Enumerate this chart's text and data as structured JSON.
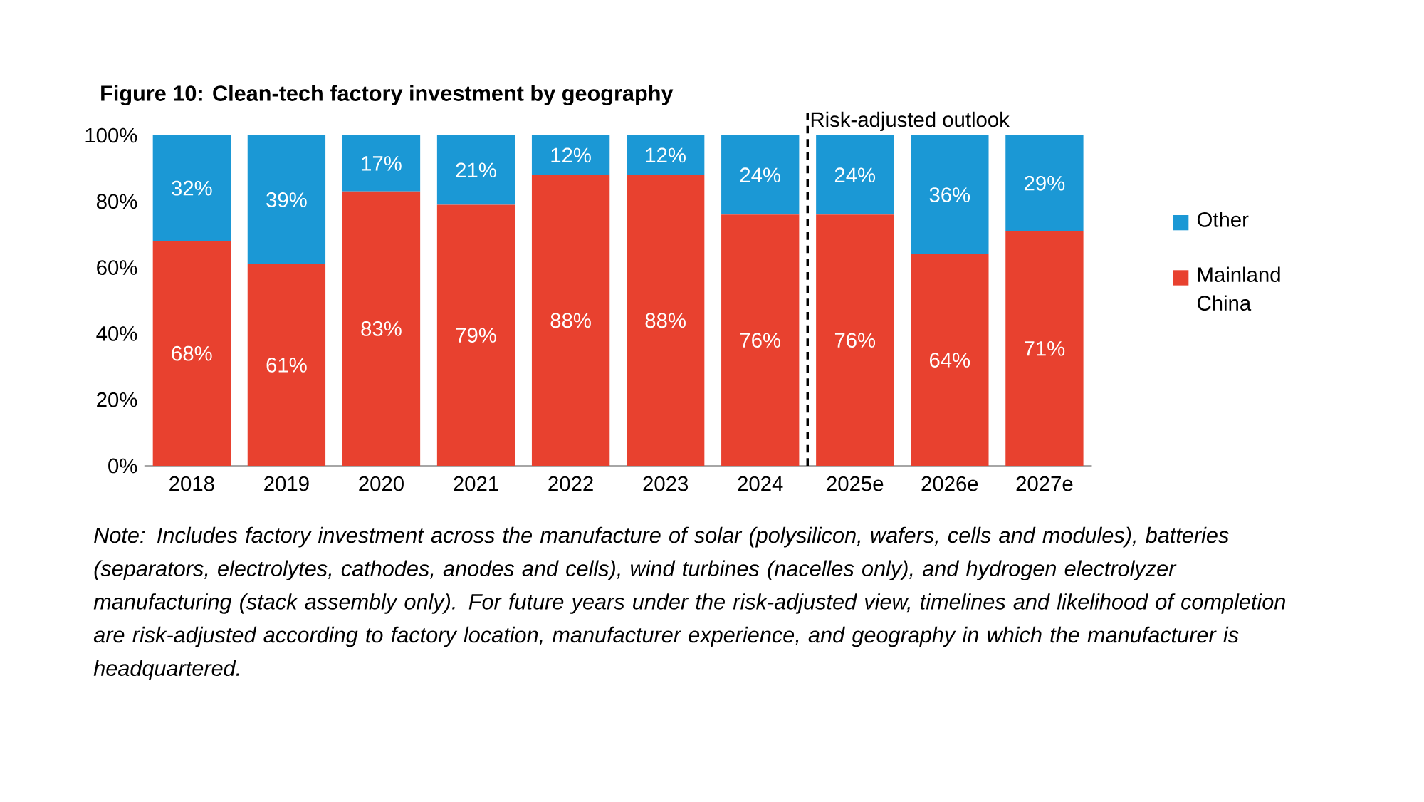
{
  "chart_data": {
    "type": "bar",
    "stacked": true,
    "title": "Figure 10: Clean-tech factory investment by geography",
    "categories": [
      "2018",
      "2019",
      "2020",
      "2021",
      "2022",
      "2023",
      "2024",
      "2025e",
      "2026e",
      "2027e"
    ],
    "series": [
      {
        "name": "Mainland China",
        "color": "#e8412f",
        "values": [
          68,
          61,
          83,
          79,
          88,
          88,
          76,
          76,
          64,
          71
        ],
        "value_labels": [
          "68%",
          "61%",
          "83%",
          "79%",
          "88%",
          "88%",
          "76%",
          "76%",
          "64%",
          "71%"
        ]
      },
      {
        "name": "Other",
        "color": "#1b98d5",
        "values": [
          32,
          39,
          17,
          21,
          12,
          12,
          24,
          24,
          36,
          29
        ],
        "value_labels": [
          "32%",
          "39%",
          "17%",
          "21%",
          "12%",
          "12%",
          "24%",
          "24%",
          "36%",
          "29%"
        ]
      }
    ],
    "ylim": [
      0,
      100
    ],
    "yticks": [
      {
        "value": 0,
        "label": "0%"
      },
      {
        "value": 20,
        "label": "20%"
      },
      {
        "value": 40,
        "label": "40%"
      },
      {
        "value": 60,
        "label": "60%"
      },
      {
        "value": 80,
        "label": "80%"
      },
      {
        "value": 100,
        "label": "100%"
      }
    ],
    "legend": "right",
    "grid": false,
    "annotations": [
      "Risk-adjusted outlook",
      "Note: Includes factory investment across the manufacture of solar (polysilicon, wafers, cells and modules), batteries (separators, electrolytes, cathodes, anodes and cells), wind turbines (nacelles only), and hydrogen electrolyzer manufacturing (stack assembly only). For future years under the risk-adjusted view, timelines and likelihood of completion are risk-adjusted according to factory location, manufacturer experience, and geography in which the manufacturer is headquartered."
    ]
  }
}
